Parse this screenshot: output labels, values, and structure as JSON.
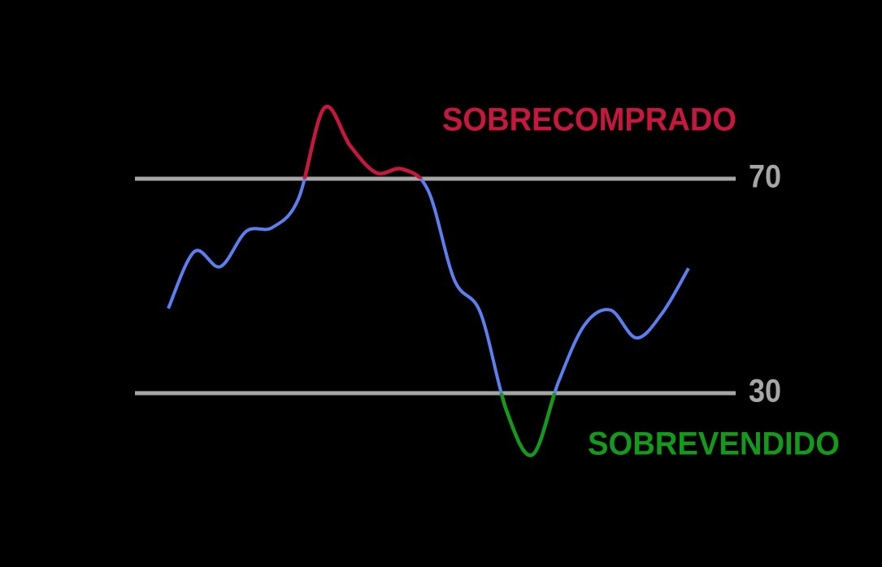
{
  "chart_data": {
    "type": "line",
    "values": [
      45.8,
      56.4,
      53.6,
      60.2,
      60.9,
      66.2,
      83.2,
      76.1,
      71.1,
      71.8,
      67.7,
      51.1,
      45,
      26.8,
      18.5,
      32.1,
      42.7,
      45.5,
      40.3,
      45,
      53.3
    ],
    "color": "#5b7ff0",
    "ylim": [
      0,
      100
    ],
    "yticks": [
      30,
      70
    ],
    "grid": true,
    "annotations": [
      {
        "text": "SOBRECOMPRADO",
        "color": "#c8173c"
      },
      {
        "text": "SOBREVENDIDO",
        "color": "#139a1a"
      }
    ]
  }
}
